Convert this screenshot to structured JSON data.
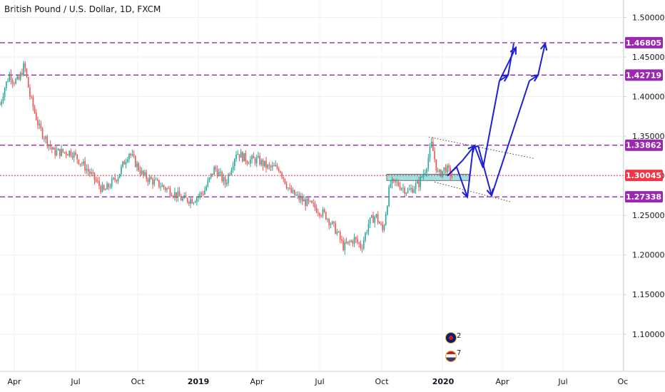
{
  "title": "British Pound / U.S. Dollar, 1D, FXCM",
  "chart_data": {
    "type": "candlestick",
    "ylim": [
      1.053,
      1.522
    ],
    "y_ticks": [
      "1.50000",
      "1.45000",
      "1.40000",
      "1.35000",
      "1.30000",
      "1.25000",
      "1.20000",
      "1.15000",
      "1.10000"
    ],
    "x_labels": [
      "Apr",
      "Jul",
      "Oct",
      "2019",
      "Apr",
      "Jul",
      "Oct",
      "2020",
      "Apr",
      "Jul",
      "Oc"
    ],
    "bold_x_labels": [
      "2019",
      "2020"
    ],
    "price_path": [
      {
        "t": 0,
        "p": 1.39
      },
      {
        "t": 6,
        "p": 1.41
      },
      {
        "t": 14,
        "p": 1.43
      },
      {
        "t": 18,
        "p": 1.42
      },
      {
        "t": 26,
        "p": 1.42
      },
      {
        "t": 34,
        "p": 1.44
      },
      {
        "t": 42,
        "p": 1.4
      },
      {
        "t": 55,
        "p": 1.36
      },
      {
        "t": 75,
        "p": 1.33
      },
      {
        "t": 100,
        "p": 1.33
      },
      {
        "t": 120,
        "p": 1.31
      },
      {
        "t": 145,
        "p": 1.28
      },
      {
        "t": 165,
        "p": 1.3
      },
      {
        "t": 180,
        "p": 1.33
      },
      {
        "t": 200,
        "p": 1.3
      },
      {
        "t": 220,
        "p": 1.29
      },
      {
        "t": 240,
        "p": 1.28
      },
      {
        "t": 255,
        "p": 1.27
      },
      {
        "t": 270,
        "p": 1.27
      },
      {
        "t": 285,
        "p": 1.28
      },
      {
        "t": 300,
        "p": 1.31
      },
      {
        "t": 315,
        "p": 1.29
      },
      {
        "t": 330,
        "p": 1.33
      },
      {
        "t": 345,
        "p": 1.32
      },
      {
        "t": 360,
        "p": 1.32
      },
      {
        "t": 375,
        "p": 1.31
      },
      {
        "t": 390,
        "p": 1.31
      },
      {
        "t": 405,
        "p": 1.28
      },
      {
        "t": 420,
        "p": 1.27
      },
      {
        "t": 440,
        "p": 1.26
      },
      {
        "t": 455,
        "p": 1.25
      },
      {
        "t": 470,
        "p": 1.23
      },
      {
        "t": 480,
        "p": 1.21
      },
      {
        "t": 495,
        "p": 1.22
      },
      {
        "t": 505,
        "p": 1.21
      },
      {
        "t": 515,
        "p": 1.24
      },
      {
        "t": 525,
        "p": 1.25
      },
      {
        "t": 535,
        "p": 1.23
      },
      {
        "t": 545,
        "p": 1.29
      },
      {
        "t": 555,
        "p": 1.29
      },
      {
        "t": 570,
        "p": 1.28
      },
      {
        "t": 585,
        "p": 1.29
      },
      {
        "t": 595,
        "p": 1.31
      },
      {
        "t": 603,
        "p": 1.34
      },
      {
        "t": 612,
        "p": 1.3
      },
      {
        "t": 622,
        "p": 1.31
      },
      {
        "t": 632,
        "p": 1.3
      }
    ],
    "levels": [
      {
        "value": 1.46805,
        "label": "1.46805",
        "color": "#9c27b0",
        "style": "dashed"
      },
      {
        "value": 1.42719,
        "label": "1.42719",
        "color": "#9c27b0",
        "style": "dashed"
      },
      {
        "value": 1.33862,
        "label": "1.33862",
        "color": "#9c27b0",
        "style": "dashed"
      },
      {
        "value": 1.30045,
        "label": "1.30045",
        "color": "#f23645",
        "style": "dotted"
      },
      {
        "value": 1.27338,
        "label": "1.27338",
        "color": "#9c27b0",
        "style": "dashed"
      }
    ],
    "zone": {
      "from": 1.294,
      "to": 1.302,
      "color": "#7fd6d6"
    },
    "up_color": "#26a69a",
    "down_color": "#ef5350",
    "projection_color": "#1f1fd6",
    "grid": true
  },
  "badges": {
    "uk_count": "2",
    "us_count": "7"
  }
}
